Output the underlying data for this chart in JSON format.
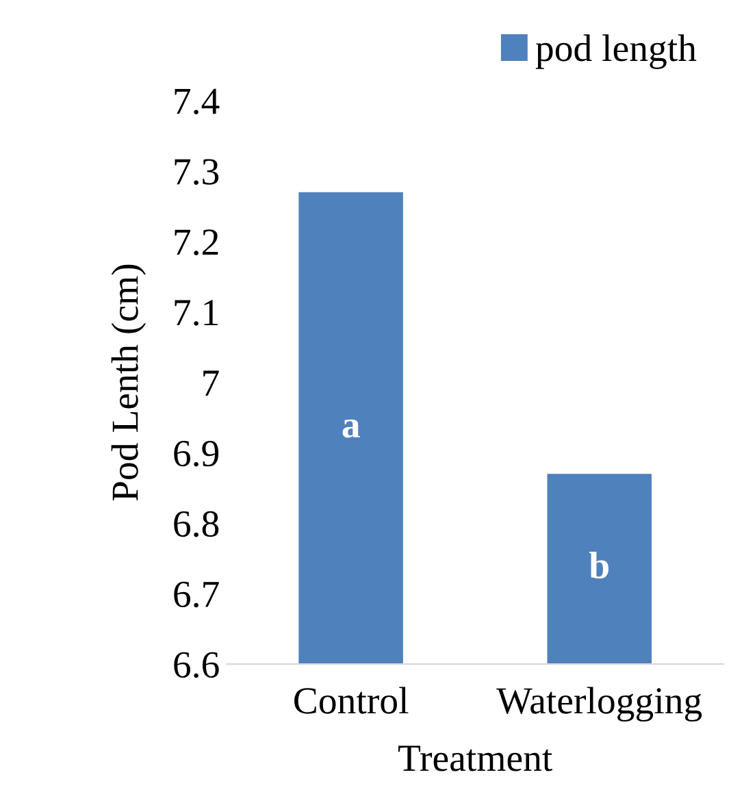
{
  "chart_data": {
    "type": "bar",
    "xlabel": "Treatment",
    "ylabel": "Pod Lenth (cm)",
    "categories": [
      "Control",
      "Waterlogging"
    ],
    "series": [
      {
        "name": "pod length",
        "color": "#4f81bd",
        "values": [
          7.27,
          6.87
        ]
      }
    ],
    "ylim": [
      6.6,
      7.4
    ],
    "yticks": [
      6.6,
      6.7,
      6.8,
      6.9,
      7,
      7.1,
      7.2,
      7.3,
      7.4
    ],
    "grid": false,
    "legend": "top right",
    "annotations": [
      "a",
      "b"
    ]
  }
}
